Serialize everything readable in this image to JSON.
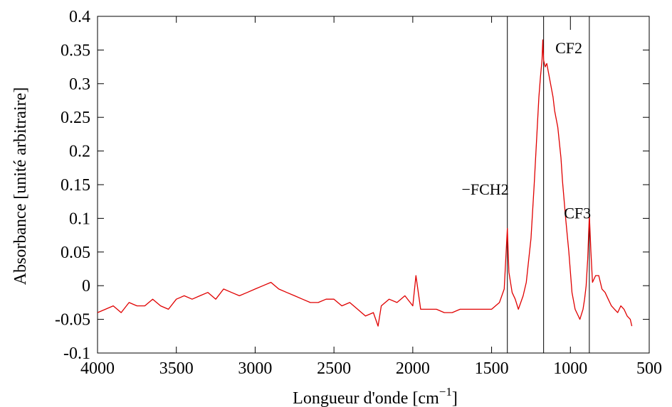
{
  "chart_data": {
    "type": "line",
    "title": "",
    "xlabel": "Longueur d'onde [cm",
    "xlabel_sup": "−1",
    "xlabel_close": "]",
    "ylabel": "Absorbance [unité arbitraire]",
    "xlim": [
      4000,
      500
    ],
    "ylim": [
      -0.1,
      0.4
    ],
    "grid": false,
    "x_ticks": [
      4000,
      3500,
      3000,
      2500,
      2000,
      1500,
      1000,
      500
    ],
    "x_tick_labels": [
      "4000",
      "3500",
      "3000",
      "2500",
      "2000",
      "1500",
      "1000",
      "500"
    ],
    "y_ticks": [
      -0.1,
      -0.05,
      0,
      0.05,
      0.1,
      0.15,
      0.2,
      0.25,
      0.3,
      0.35,
      0.4
    ],
    "y_tick_labels": [
      "-0.1",
      "-0.05",
      "0",
      "0.05",
      "0.1",
      "0.15",
      "0.2",
      "0.25",
      "0.3",
      "0.35",
      "0.4"
    ],
    "series": [
      {
        "color": "#e00000",
        "x": [
          4000,
          3950,
          3900,
          3850,
          3800,
          3750,
          3700,
          3650,
          3600,
          3550,
          3500,
          3450,
          3400,
          3350,
          3300,
          3250,
          3200,
          3150,
          3100,
          3050,
          3000,
          2950,
          2900,
          2850,
          2800,
          2750,
          2700,
          2650,
          2600,
          2550,
          2500,
          2450,
          2400,
          2350,
          2300,
          2250,
          2220,
          2200,
          2150,
          2100,
          2050,
          2000,
          1980,
          1950,
          1900,
          1850,
          1800,
          1750,
          1700,
          1650,
          1600,
          1550,
          1500,
          1450,
          1420,
          1400,
          1390,
          1370,
          1350,
          1330,
          1300,
          1280,
          1250,
          1230,
          1200,
          1190,
          1180,
          1175,
          1170,
          1160,
          1150,
          1130,
          1110,
          1100,
          1080,
          1060,
          1050,
          1030,
          1010,
          1000,
          990,
          970,
          950,
          940,
          920,
          910,
          900,
          890,
          880,
          870,
          860,
          840,
          820,
          800,
          780,
          760,
          740,
          720,
          700,
          680,
          660,
          640,
          620,
          610
        ],
        "y": [
          -0.04,
          -0.035,
          -0.03,
          -0.04,
          -0.025,
          -0.03,
          -0.03,
          -0.02,
          -0.03,
          -0.035,
          -0.02,
          -0.015,
          -0.02,
          -0.015,
          -0.01,
          -0.02,
          -0.005,
          -0.01,
          -0.015,
          -0.01,
          -0.005,
          0.0,
          0.005,
          -0.005,
          -0.01,
          -0.015,
          -0.02,
          -0.025,
          -0.025,
          -0.02,
          -0.02,
          -0.03,
          -0.025,
          -0.035,
          -0.045,
          -0.04,
          -0.06,
          -0.03,
          -0.02,
          -0.025,
          -0.015,
          -0.03,
          0.015,
          -0.035,
          -0.035,
          -0.035,
          -0.04,
          -0.04,
          -0.035,
          -0.035,
          -0.035,
          -0.035,
          -0.035,
          -0.025,
          -0.005,
          0.085,
          0.02,
          -0.01,
          -0.02,
          -0.035,
          -0.015,
          0.005,
          0.07,
          0.15,
          0.28,
          0.31,
          0.335,
          0.365,
          0.335,
          0.325,
          0.33,
          0.305,
          0.28,
          0.26,
          0.235,
          0.19,
          0.155,
          0.1,
          0.05,
          0.02,
          -0.01,
          -0.035,
          -0.045,
          -0.05,
          -0.035,
          -0.02,
          0.0,
          0.04,
          0.105,
          0.05,
          0.005,
          0.015,
          0.015,
          -0.005,
          -0.01,
          -0.02,
          -0.03,
          -0.035,
          -0.04,
          -0.03,
          -0.035,
          -0.045,
          -0.05,
          -0.06
        ]
      }
    ],
    "vertical_lines": [
      1400,
      1170,
      880
    ],
    "small_tick_at": 1000,
    "annotations": [
      {
        "text": "−FCH2",
        "x": 1400,
        "y": 0.135
      },
      {
        "text": "CF2",
        "x": 1010,
        "y": 0.345
      },
      {
        "text": "CF3",
        "x": 770,
        "y": 0.1
      }
    ]
  }
}
